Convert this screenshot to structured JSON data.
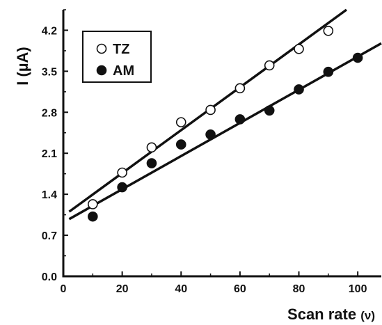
{
  "chart_data": {
    "type": "scatter",
    "xlabel": "Scan rate",
    "xlabel_unit": "(ν)",
    "ylabel": "I (µA)",
    "xlim": [
      0,
      108
    ],
    "ylim": [
      0,
      4.55
    ],
    "x_ticks": [
      0,
      20,
      40,
      60,
      80,
      100
    ],
    "y_ticks": [
      "0.0",
      "0.7",
      "1.4",
      "2.1",
      "2.8",
      "3.5",
      "4.2"
    ],
    "legend_position": "top-left",
    "series": [
      {
        "name": "TZ",
        "marker": "open-circle",
        "color": "#111111",
        "points": [
          {
            "x": 10,
            "y": 1.23
          },
          {
            "x": 20,
            "y": 1.77
          },
          {
            "x": 30,
            "y": 2.2
          },
          {
            "x": 40,
            "y": 2.63
          },
          {
            "x": 50,
            "y": 2.84
          },
          {
            "x": 60,
            "y": 3.21
          },
          {
            "x": 70,
            "y": 3.6
          },
          {
            "x": 80,
            "y": 3.88
          },
          {
            "x": 90,
            "y": 4.19
          }
        ],
        "fit": {
          "slope": 0.0366,
          "intercept": 1.03
        }
      },
      {
        "name": "AM",
        "marker": "filled-circle",
        "color": "#111111",
        "points": [
          {
            "x": 10,
            "y": 1.02
          },
          {
            "x": 20,
            "y": 1.52
          },
          {
            "x": 30,
            "y": 1.93
          },
          {
            "x": 40,
            "y": 2.25
          },
          {
            "x": 50,
            "y": 2.42
          },
          {
            "x": 60,
            "y": 2.68
          },
          {
            "x": 70,
            "y": 2.83
          },
          {
            "x": 80,
            "y": 3.19
          },
          {
            "x": 90,
            "y": 3.49
          },
          {
            "x": 100,
            "y": 3.73
          }
        ],
        "fit": {
          "slope": 0.0283,
          "intercept": 0.92
        }
      }
    ]
  }
}
